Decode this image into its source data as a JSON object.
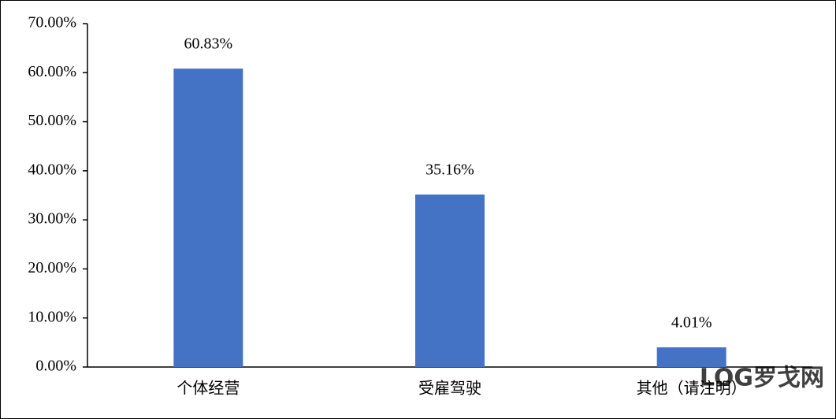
{
  "chart_data": {
    "type": "bar",
    "categories": [
      "个体经营",
      "受雇驾驶",
      "其他（请注明）"
    ],
    "values": [
      60.83,
      35.16,
      4.01
    ],
    "value_labels": [
      "60.83%",
      "35.16%",
      "4.01%"
    ],
    "color": "#4472c4",
    "ylim": [
      0,
      70
    ],
    "yticks": [
      {
        "value": 0,
        "label": "0.00%"
      },
      {
        "value": 10,
        "label": "10.00%"
      },
      {
        "value": 20,
        "label": "20.00%"
      },
      {
        "value": 30,
        "label": "30.00%"
      },
      {
        "value": 40,
        "label": "40.00%"
      },
      {
        "value": 50,
        "label": "50.00%"
      },
      {
        "value": 60,
        "label": "60.00%"
      },
      {
        "value": 70,
        "label": "70.00%"
      }
    ],
    "grid": false,
    "watermark": "LOG罗戈网"
  }
}
